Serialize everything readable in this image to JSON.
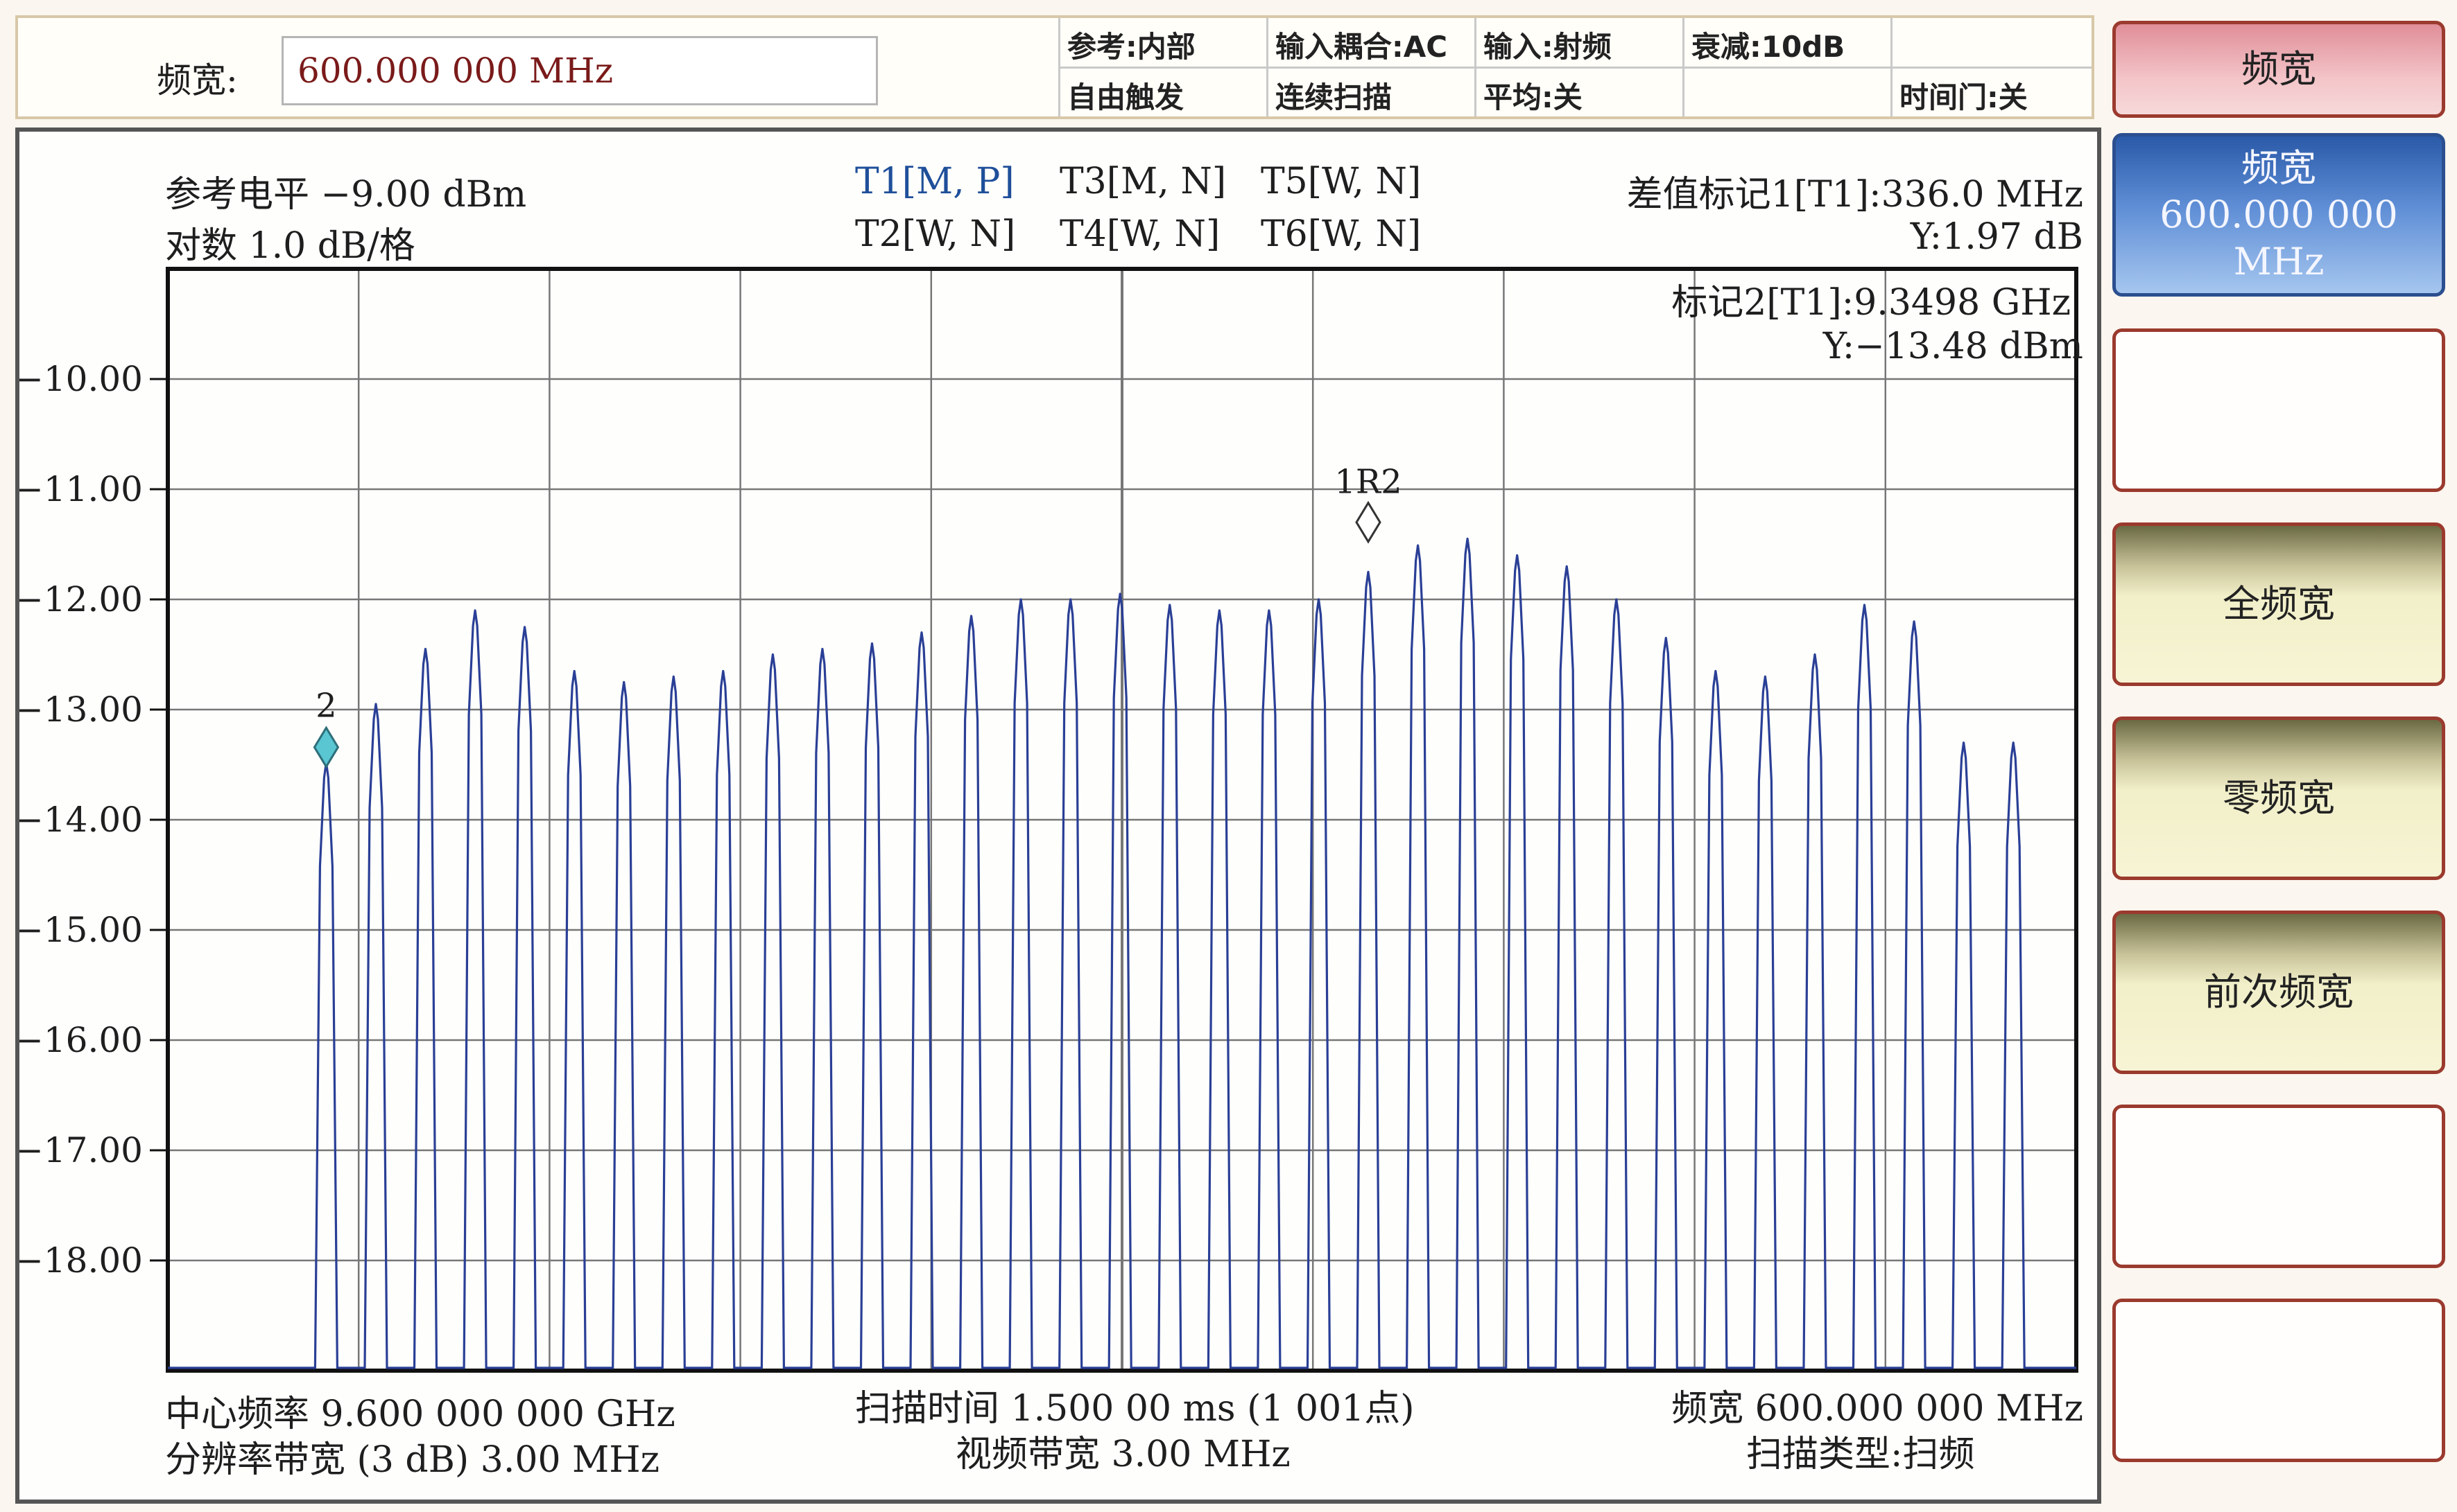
{
  "span_field": {
    "label": "频宽:",
    "value": "600.000 000 MHz"
  },
  "status": {
    "ref": "参考:内部",
    "coupling": "输入耦合:AC",
    "input": "输入:射频",
    "atten": "衰减:10dB",
    "trigger": "自由触发",
    "sweep_mode": "连续扫描",
    "average": "平均:关",
    "time_gate": "时间门:关"
  },
  "display": {
    "ref_level": "参考电平  −9.00 dBm",
    "scale": "对数  1.0 dB/格",
    "traces": [
      "T1[M, P]",
      "T3[M, N]",
      "T5[W, N]",
      "T2[W, N]",
      "T4[W, N]",
      "T6[W, N]"
    ],
    "delta_marker": "差值标记1[T1]:336.0 MHz",
    "delta_y": "Y:1.97 dB",
    "marker2": "标记2[T1]:9.3498 GHz",
    "marker2_y": "Y:−13.48 dBm",
    "marker1_label": "1R2",
    "marker2_label": "2",
    "center_freq": "中心频率 9.600 000 000 GHz",
    "rbw": "分辨率带宽 (3 dB) 3.00 MHz",
    "sweep_time": "扫描时间 1.500 00 ms (1 001点)",
    "vbw": "视频带宽 3.00 MHz",
    "span_footer": "频宽 600.000 000 MHz",
    "sweep_type": "扫描类型:扫频"
  },
  "chart_data": {
    "type": "line",
    "y_tick_labels": [
      "−10.00",
      "−11.00",
      "−12.00",
      "−13.00",
      "−14.00",
      "−15.00",
      "−16.00",
      "−17.00",
      "−18.00"
    ],
    "ylim": [
      -19,
      -9
    ],
    "xlim_ghz": [
      9.3,
      9.9
    ],
    "grid": true,
    "series": [
      {
        "peak_freqs_ghz": [
          9.3498,
          9.3654,
          9.381,
          9.3966,
          9.4122,
          9.4278,
          9.4434,
          9.459,
          9.4746,
          9.4902,
          9.5058,
          9.5214,
          9.537,
          9.5526,
          9.5682,
          9.5838,
          9.5994,
          9.615,
          9.6306,
          9.6462,
          9.6618,
          9.6774,
          9.693,
          9.7086,
          9.7242,
          9.7398,
          9.7554,
          9.771,
          9.7866,
          9.8022,
          9.8178,
          9.8334,
          9.849,
          9.8646,
          9.8802
        ],
        "peak_dbm": [
          -13.48,
          -12.95,
          -12.45,
          -12.1,
          -12.25,
          -12.65,
          -12.75,
          -12.7,
          -12.65,
          -12.5,
          -12.45,
          -12.4,
          -12.3,
          -12.15,
          -12.0,
          -12.0,
          -11.95,
          -12.05,
          -12.1,
          -12.1,
          -12.0,
          -11.75,
          -11.51,
          -11.45,
          -11.6,
          -11.7,
          -12.0,
          -12.35,
          -12.65,
          -12.7,
          -12.5,
          -12.05,
          -12.2,
          -13.3,
          null
        ],
        "floor_dbm": -19
      }
    ]
  },
  "softkeys": [
    {
      "label": "频宽",
      "sub": ""
    },
    {
      "label": "频宽",
      "sub": "600.000 000 MHz"
    },
    {
      "label": "",
      "sub": ""
    },
    {
      "label": "全频宽",
      "sub": ""
    },
    {
      "label": "零频宽",
      "sub": ""
    },
    {
      "label": "前次频宽",
      "sub": ""
    },
    {
      "label": "",
      "sub": ""
    },
    {
      "label": "",
      "sub": ""
    }
  ],
  "colors": {
    "trace": "#2a3f96",
    "marker2": "#59c6d2",
    "grid": "#777777"
  }
}
